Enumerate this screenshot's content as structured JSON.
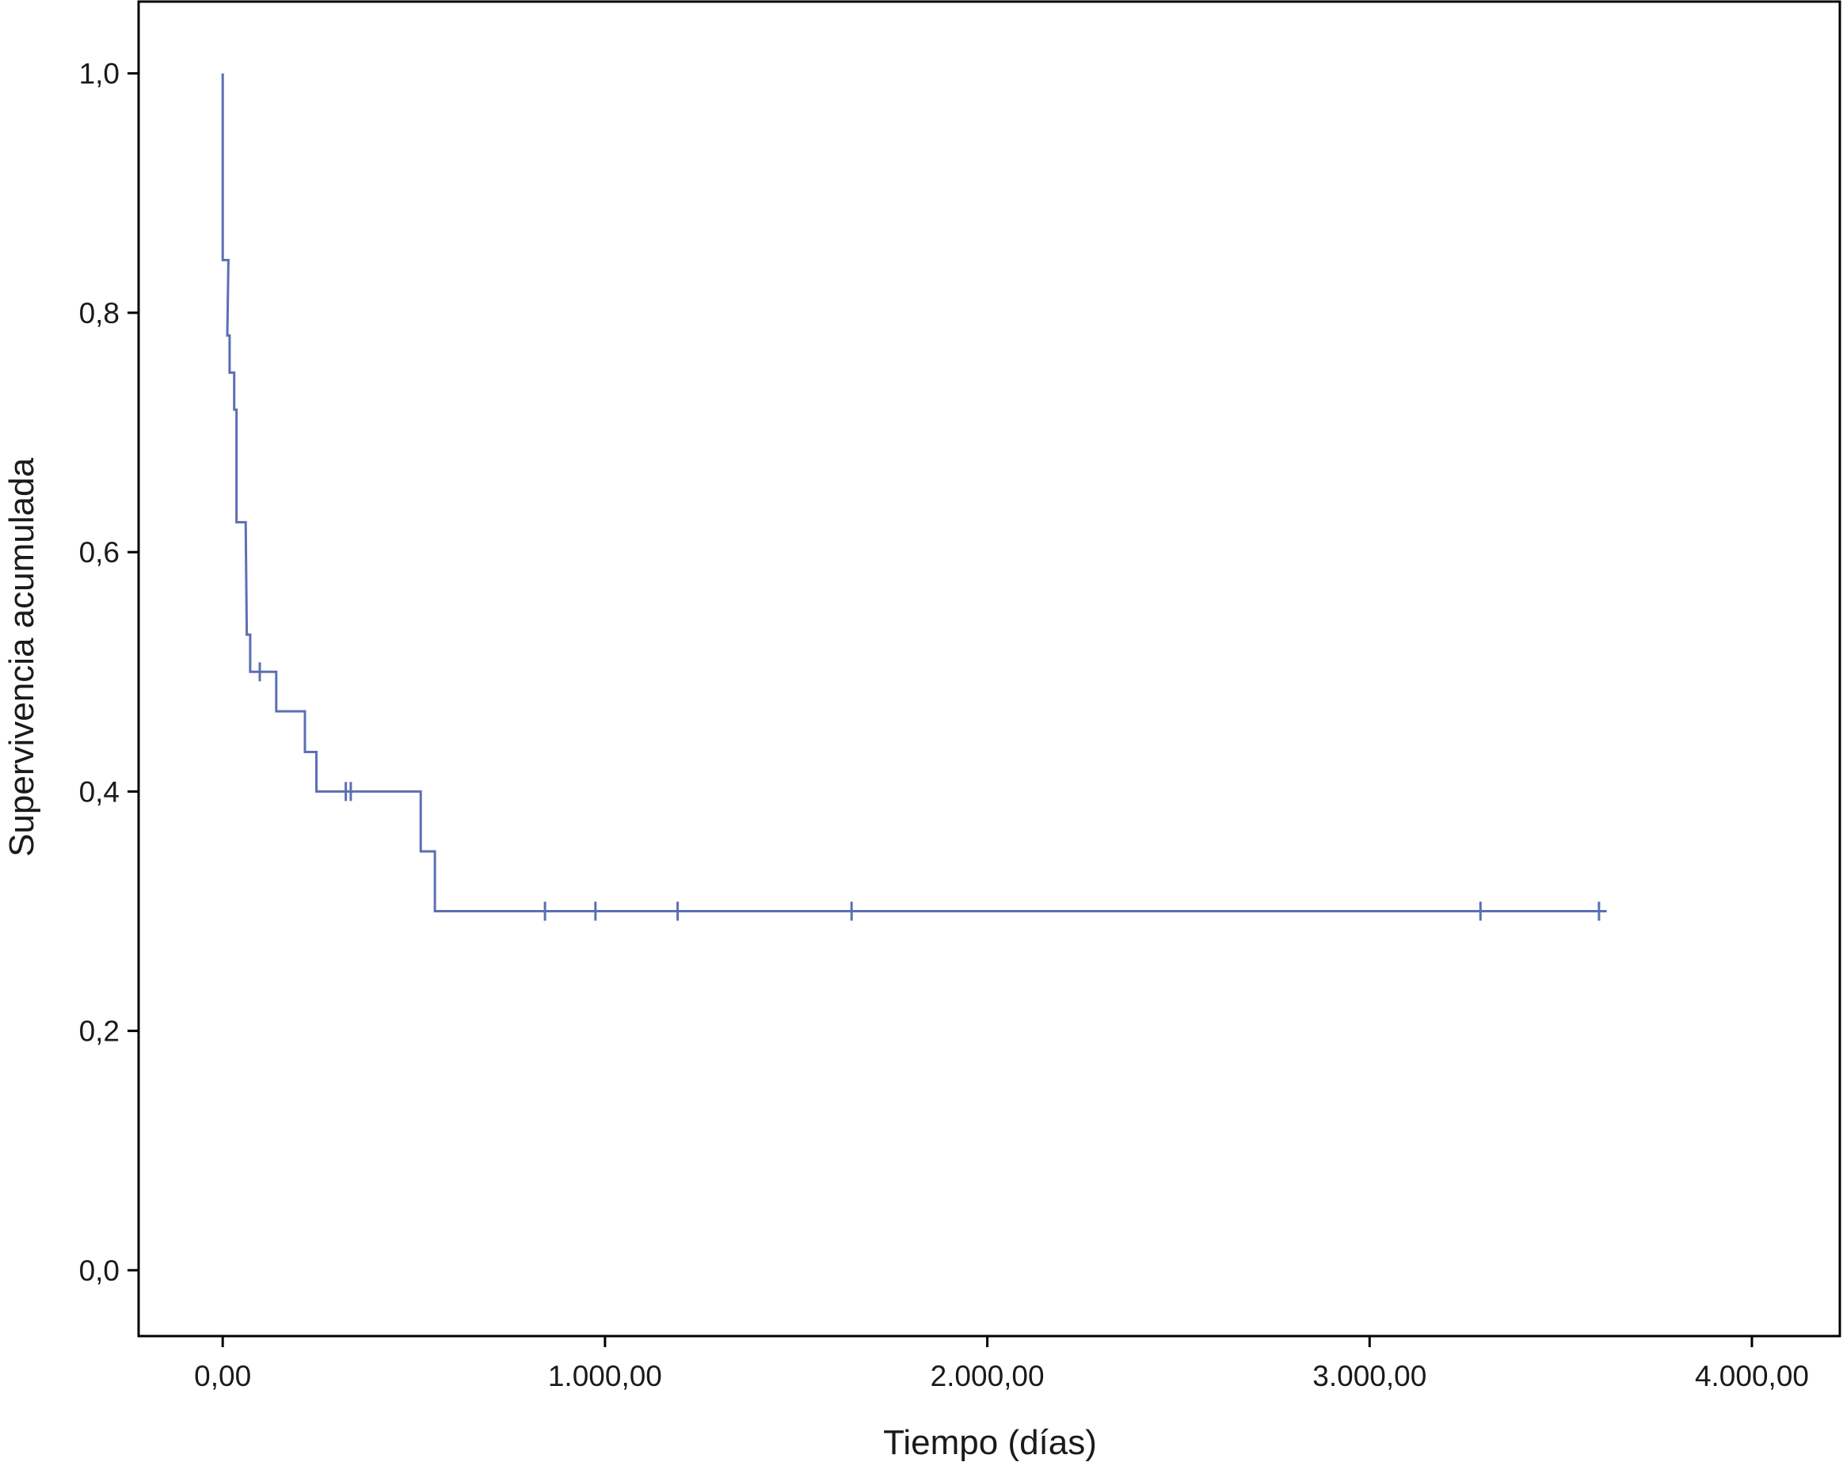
{
  "chart_data": {
    "type": "line",
    "subtype": "kaplan-meier-step",
    "title": "",
    "xlabel": "Tiempo (días)",
    "ylabel": "Supervivencia acumulada",
    "xlim": [
      -220,
      4230
    ],
    "ylim": [
      -0.055,
      1.06
    ],
    "xticks": [
      0,
      1000,
      2000,
      3000,
      4000
    ],
    "xtick_labels": [
      "0,00",
      "1.000,00",
      "2.000,00",
      "3.000,00",
      "4.000,00"
    ],
    "yticks": [
      0.0,
      0.2,
      0.4,
      0.6,
      0.8,
      1.0
    ],
    "ytick_labels": [
      "0,0",
      "0,2",
      "0,4",
      "0,6",
      "0,8",
      "1,0"
    ],
    "grid": false,
    "legend": "none",
    "line_color": "#5b6fb5",
    "series": [
      {
        "steps": [
          {
            "x": 0,
            "y": 1.0
          },
          {
            "x": 0,
            "y": 0.844
          },
          {
            "x": 15,
            "y": 0.844
          },
          {
            "x": 12,
            "y": 0.781
          },
          {
            "x": 18,
            "y": 0.781
          },
          {
            "x": 18,
            "y": 0.75
          },
          {
            "x": 30,
            "y": 0.75
          },
          {
            "x": 30,
            "y": 0.719
          },
          {
            "x": 36,
            "y": 0.719
          },
          {
            "x": 36,
            "y": 0.625
          },
          {
            "x": 60,
            "y": 0.625
          },
          {
            "x": 63,
            "y": 0.531
          },
          {
            "x": 72,
            "y": 0.531
          },
          {
            "x": 72,
            "y": 0.5
          },
          {
            "x": 140,
            "y": 0.5
          },
          {
            "x": 140,
            "y": 0.467
          },
          {
            "x": 215,
            "y": 0.467
          },
          {
            "x": 215,
            "y": 0.433
          },
          {
            "x": 245,
            "y": 0.433
          },
          {
            "x": 245,
            "y": 0.4
          },
          {
            "x": 518,
            "y": 0.4
          },
          {
            "x": 518,
            "y": 0.35
          },
          {
            "x": 555,
            "y": 0.35
          },
          {
            "x": 555,
            "y": 0.3
          },
          {
            "x": 3620,
            "y": 0.3
          }
        ],
        "censored": [
          {
            "x": 97,
            "y": 0.5
          },
          {
            "x": 322,
            "y": 0.4
          },
          {
            "x": 335,
            "y": 0.4
          },
          {
            "x": 843,
            "y": 0.3
          },
          {
            "x": 975,
            "y": 0.3
          },
          {
            "x": 1190,
            "y": 0.3
          },
          {
            "x": 1645,
            "y": 0.3
          },
          {
            "x": 3290,
            "y": 0.3
          },
          {
            "x": 3600,
            "y": 0.3
          }
        ]
      }
    ]
  }
}
